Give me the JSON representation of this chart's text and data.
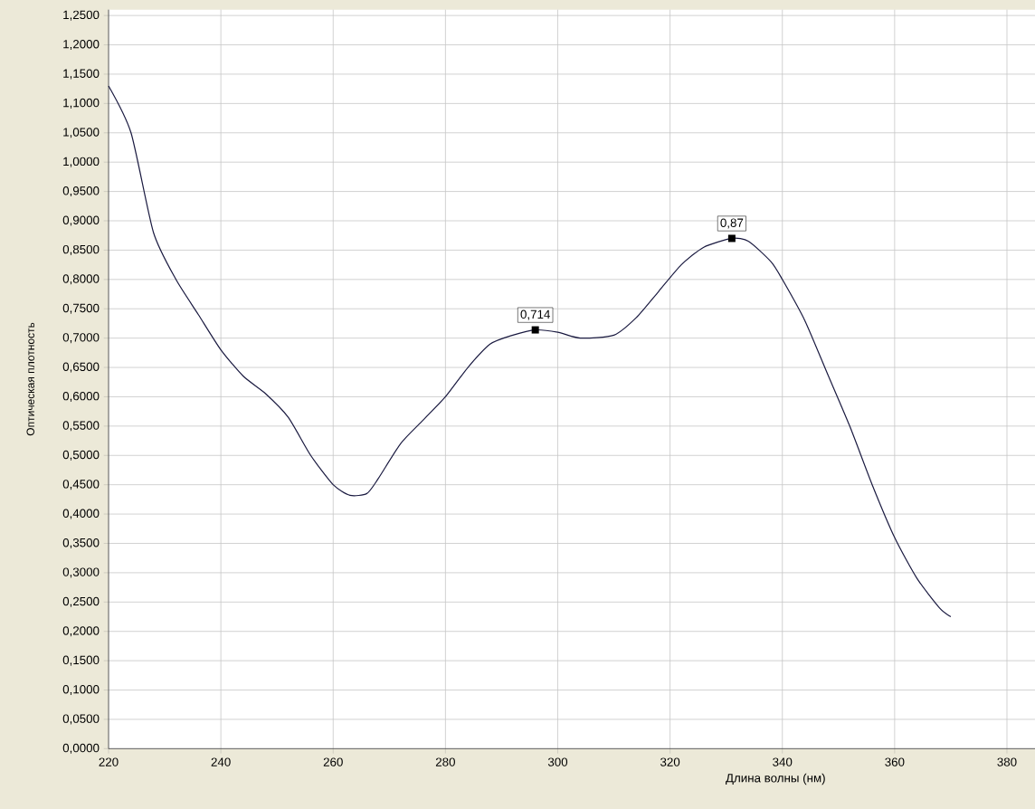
{
  "chart_data": {
    "type": "line",
    "xlabel": "Длина волны (нм)",
    "ylabel": "Оптическая плотность",
    "x": [
      220,
      224,
      228,
      232,
      236,
      240,
      244,
      248,
      252,
      256,
      260,
      263,
      266,
      268,
      272,
      276,
      280,
      284,
      288,
      292,
      296,
      300,
      304,
      310,
      314,
      318,
      322,
      326,
      331,
      334,
      338,
      340,
      344,
      348,
      352,
      356,
      360,
      364,
      368,
      370
    ],
    "values": [
      1.13,
      1.05,
      0.88,
      0.8,
      0.74,
      0.68,
      0.635,
      0.605,
      0.565,
      0.5,
      0.45,
      0.432,
      0.435,
      0.46,
      0.52,
      0.56,
      0.6,
      0.65,
      0.69,
      0.705,
      0.714,
      0.71,
      0.7,
      0.705,
      0.735,
      0.78,
      0.825,
      0.855,
      0.87,
      0.865,
      0.83,
      0.8,
      0.73,
      0.64,
      0.55,
      0.45,
      0.36,
      0.29,
      0.24,
      0.225
    ],
    "color": "#1a1a40",
    "marker": "none",
    "line_style": "solid",
    "grid": true,
    "xlim": [
      220,
      385
    ],
    "ylim": [
      0,
      1.26
    ],
    "xticks": [
      220,
      240,
      260,
      280,
      300,
      320,
      340,
      360,
      380
    ],
    "yticks": [
      {
        "value": 0,
        "label": "0,0000"
      },
      {
        "value": 0.05,
        "label": "0,0500"
      },
      {
        "value": 0.1,
        "label": "0,1000"
      },
      {
        "value": 0.15,
        "label": "0,1500"
      },
      {
        "value": 0.2,
        "label": "0,2000"
      },
      {
        "value": 0.25,
        "label": "0,2500"
      },
      {
        "value": 0.3,
        "label": "0,3000"
      },
      {
        "value": 0.35,
        "label": "0,3500"
      },
      {
        "value": 0.4,
        "label": "0,4000"
      },
      {
        "value": 0.45,
        "label": "0,4500"
      },
      {
        "value": 0.5,
        "label": "0,5000"
      },
      {
        "value": 0.55,
        "label": "0,5500"
      },
      {
        "value": 0.6,
        "label": "0,6000"
      },
      {
        "value": 0.65,
        "label": "0,6500"
      },
      {
        "value": 0.7,
        "label": "0,7000"
      },
      {
        "value": 0.75,
        "label": "0,7500"
      },
      {
        "value": 0.8,
        "label": "0,8000"
      },
      {
        "value": 0.85,
        "label": "0,8500"
      },
      {
        "value": 0.9,
        "label": "0,9000"
      },
      {
        "value": 0.95,
        "label": "0,9500"
      },
      {
        "value": 1.0,
        "label": "1,0000"
      },
      {
        "value": 1.05,
        "label": "1,0500"
      },
      {
        "value": 1.1,
        "label": "1,1000"
      },
      {
        "value": 1.15,
        "label": "1,1500"
      },
      {
        "value": 1.2,
        "label": "1,2000"
      },
      {
        "value": 1.25,
        "label": "1,2500"
      }
    ],
    "annotations": [
      {
        "text": "0,714",
        "x": 296,
        "y": 0.714
      },
      {
        "text": "0,87",
        "x": 331,
        "y": 0.87
      }
    ]
  }
}
